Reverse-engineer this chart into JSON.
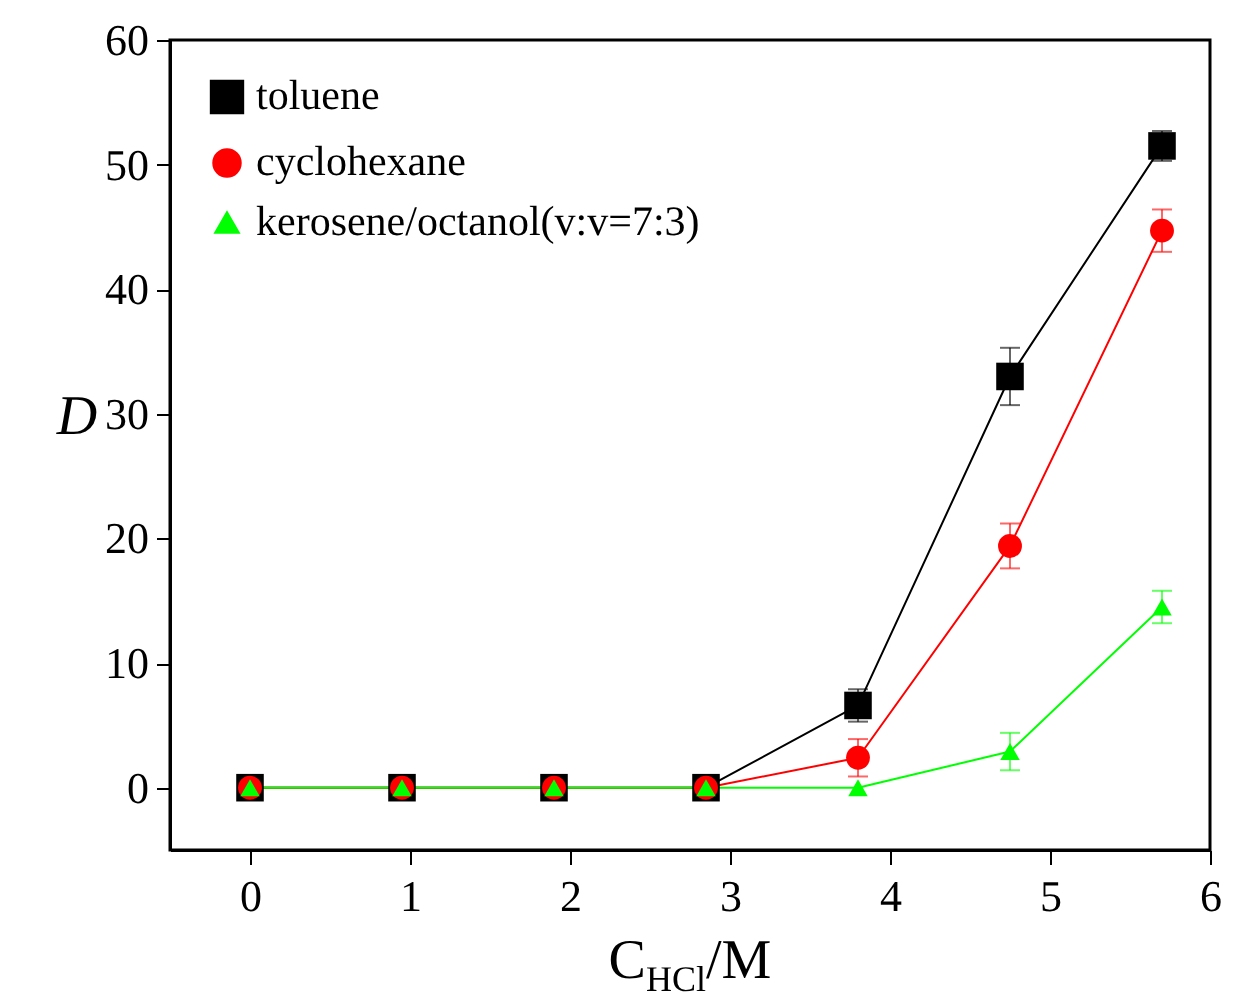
{
  "chart_data": {
    "type": "line",
    "xlabel": "C$_{HCl}$/M",
    "ylabel": "D",
    "x": [
      0,
      0.95,
      1.9,
      2.85,
      3.8,
      4.75,
      5.7
    ],
    "series": [
      {
        "name": "toluene",
        "color": "#000000",
        "marker": "square",
        "values": [
          0,
          0,
          0,
          0,
          6.6,
          33.0,
          51.5
        ],
        "errors": [
          null,
          null,
          null,
          null,
          1.3,
          2.3,
          1.2
        ]
      },
      {
        "name": "cyclohexane",
        "color": "#ff0000",
        "marker": "circle",
        "values": [
          0,
          0,
          0,
          0,
          2.4,
          19.4,
          44.7
        ],
        "errors": [
          null,
          null,
          null,
          null,
          1.5,
          1.8,
          1.7
        ]
      },
      {
        "name": "kerosene/octanol(v:v=7:3)",
        "color": "#00ff00",
        "marker": "triangle",
        "values": [
          0,
          0,
          0,
          0,
          0,
          2.9,
          14.5
        ],
        "errors": [
          null,
          null,
          null,
          null,
          null,
          1.5,
          1.3
        ]
      }
    ],
    "xlim": [
      -0.5,
      6
    ],
    "xticks": [
      0,
      1,
      2,
      3,
      4,
      5,
      6
    ],
    "ylim": [
      -5,
      60
    ],
    "yticks": [
      0,
      10,
      20,
      30,
      40,
      50,
      60
    ],
    "grid": false,
    "legend": "top left"
  }
}
